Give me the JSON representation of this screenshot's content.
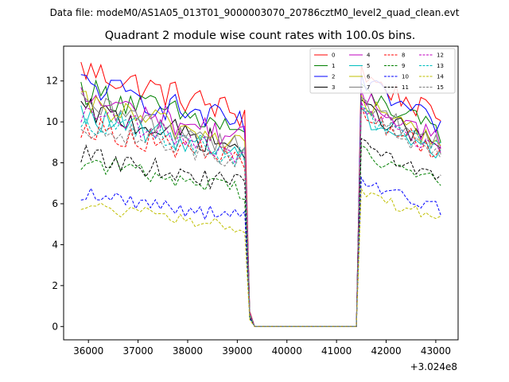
{
  "chart_data": {
    "type": "line",
    "suptitle": "Data file: modeM0/AS1A05_013T01_9000003070_20786cztM0_level2_quad_clean.evt",
    "title": "Quadrant 2 module wise count rates with 100.0s bins.",
    "xlabel": "",
    "ylabel": "",
    "x_offset_label": "+3.024e8",
    "xlim": [
      35500,
      43450
    ],
    "ylim": [
      -0.65,
      13.7
    ],
    "xticks": [
      36000,
      37000,
      38000,
      39000,
      40000,
      41000,
      42000,
      43000
    ],
    "xtick_labels": [
      "36000",
      "37000",
      "38000",
      "39000",
      "40000",
      "41000",
      "42000",
      "43000"
    ],
    "yticks": [
      0,
      2,
      4,
      6,
      8,
      10,
      12
    ],
    "ytick_labels": [
      "0",
      "2",
      "4",
      "6",
      "8",
      "10",
      "12"
    ],
    "segments": [
      {
        "start": 35850,
        "end": 39150,
        "step": 100
      },
      {
        "start": 41500,
        "end": 43150,
        "step": 100
      }
    ],
    "gap": {
      "drop_times": [
        39150,
        39250,
        39350
      ],
      "drop_fractions": [
        0.55,
        0.07,
        0.0
      ],
      "zero_start": 39350,
      "zero_end": 41400,
      "rise_time": 41500
    },
    "series": [
      {
        "name": "0",
        "color": "#ff0000",
        "dash": "solid",
        "level1": 12.6,
        "level2": 11.4
      },
      {
        "name": "1",
        "color": "#008000",
        "dash": "solid",
        "level1": 11.6,
        "level2": 10.6
      },
      {
        "name": "2",
        "color": "#0000ff",
        "dash": "solid",
        "level1": 11.9,
        "level2": 11.0
      },
      {
        "name": "3",
        "color": "#000000",
        "dash": "solid",
        "level1": 10.6,
        "level2": 9.9
      },
      {
        "name": "4",
        "color": "#bf00bf",
        "dash": "solid",
        "level1": 11.2,
        "level2": 10.3
      },
      {
        "name": "5",
        "color": "#00bfbf",
        "dash": "solid",
        "level1": 10.3,
        "level2": 9.5
      },
      {
        "name": "6",
        "color": "#bfbf00",
        "dash": "solid",
        "level1": 10.9,
        "level2": 10.1
      },
      {
        "name": "7",
        "color": "#808080",
        "dash": "solid",
        "level1": 10.8,
        "level2": 10.0
      },
      {
        "name": "8",
        "color": "#ff0000",
        "dash": "dashed",
        "level1": 9.8,
        "level2": 9.6
      },
      {
        "name": "9",
        "color": "#008000",
        "dash": "dashed",
        "level1": 8.1,
        "level2": 7.9
      },
      {
        "name": "10",
        "color": "#0000ff",
        "dash": "dashed",
        "level1": 6.5,
        "level2": 6.5
      },
      {
        "name": "11",
        "color": "#000000",
        "dash": "dashed",
        "level1": 8.4,
        "level2": 8.2
      },
      {
        "name": "12",
        "color": "#bf00bf",
        "dash": "dashed",
        "level1": 10.4,
        "level2": 9.8
      },
      {
        "name": "13",
        "color": "#00bfbf",
        "dash": "dashed",
        "level1": 10.1,
        "level2": 9.6
      },
      {
        "name": "14",
        "color": "#bfbf00",
        "dash": "dashed",
        "level1": 5.9,
        "level2": 6.0
      },
      {
        "name": "15",
        "color": "#808080",
        "dash": "dashed",
        "level1": 9.9,
        "level2": 9.5
      }
    ],
    "legend": {
      "placement": "top-right",
      "columns": 4
    }
  }
}
